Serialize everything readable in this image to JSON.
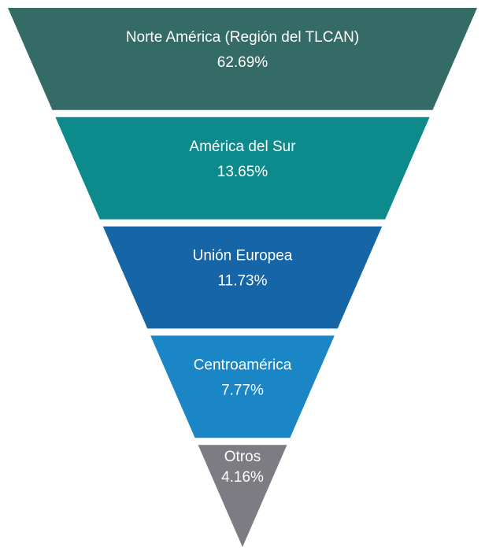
{
  "chart_data": {
    "type": "funnel",
    "categories": [
      "Norte América (Región del TLCAN)",
      "América del Sur",
      "Unión Europea",
      "Centroamérica",
      "Otros"
    ],
    "values": [
      62.69,
      13.65,
      11.73,
      7.77,
      4.16
    ],
    "value_labels": [
      "62.69%",
      "13.65%",
      "11.73%",
      "7.77%",
      "4.16%"
    ],
    "colors": [
      "#356b67",
      "#0d8a8b",
      "#1565a7",
      "#1a86c6",
      "#7c7c82"
    ]
  }
}
